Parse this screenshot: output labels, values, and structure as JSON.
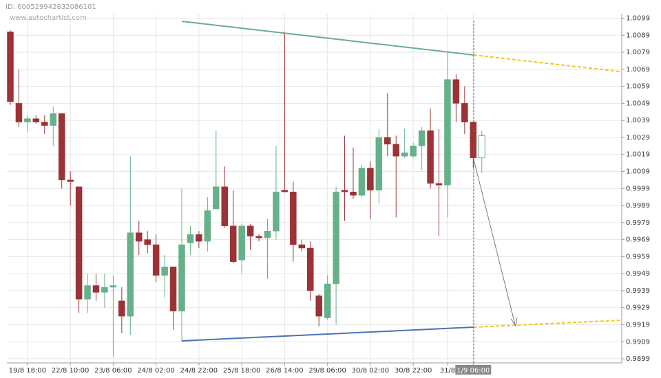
{
  "header": {
    "id": "ID: 600529942832086101",
    "site": "www.autochartist.com"
  },
  "chart_data": {
    "type": "candlestick",
    "categories": [
      null,
      null,
      "19/8 18:00",
      null,
      null,
      null,
      null,
      "22/8 10:00",
      null,
      null,
      null,
      null,
      "23/8 06:00",
      null,
      null,
      null,
      null,
      "24/8 02:00",
      null,
      null,
      null,
      null,
      "24/8 22:00",
      null,
      null,
      null,
      null,
      "25/8 18:00",
      null,
      null,
      null,
      null,
      "26/8 14:00",
      null,
      null,
      null,
      null,
      "29/8 06:00",
      null,
      null,
      null,
      null,
      "30/8 02:00",
      null,
      null,
      null,
      null,
      "30/8 22:00",
      null,
      null,
      null,
      "31/8",
      null,
      null,
      "1/9 06:00",
      null
    ],
    "open": [
      1.0091,
      1.0049,
      1.0038,
      1.004,
      1.0038,
      1.0036,
      1.0043,
      1.0004,
      1.0,
      0.9934,
      0.9942,
      0.9938,
      0.9941,
      0.9933,
      0.9924,
      0.9973,
      0.9969,
      0.9966,
      0.9948,
      0.9953,
      0.9927,
      0.9967,
      0.9972,
      0.9968,
      0.9987,
      1.0,
      0.9977,
      0.9957,
      0.9977,
      0.9971,
      0.997,
      0.9974,
      0.9998,
      0.9997,
      0.9966,
      0.9964,
      0.9936,
      0.9923,
      0.9943,
      0.9998,
      0.9997,
      0.9995,
      1.0011,
      0.9998,
      1.0029,
      1.0025,
      1.0018,
      1.0018,
      1.0024,
      1.0033,
      1.0002,
      1.0001,
      1.0063,
      1.0049,
      1.0038,
      1.0017
    ],
    "high": [
      1.0092,
      1.0069,
      1.0042,
      1.0042,
      1.0042,
      1.0047,
      1.0043,
      1.0009,
      1.0,
      0.9949,
      0.9949,
      0.9949,
      0.9948,
      0.9941,
      1.0018,
      0.998,
      0.9974,
      0.9972,
      0.996,
      0.9953,
      0.9999,
      0.9977,
      0.9974,
      0.9994,
      1.0033,
      1.0012,
      0.9998,
      0.9978,
      0.9978,
      0.9972,
      0.9981,
      1.0024,
      1.0091,
      1.0003,
      0.9969,
      0.9968,
      0.9937,
      0.9948,
      1.0,
      1.003,
      1.0023,
      1.0013,
      1.0015,
      1.0034,
      1.0055,
      1.003,
      1.0034,
      1.0026,
      1.0035,
      1.0046,
      1.0034,
      1.0079,
      1.0066,
      1.0059,
      1.0038,
      1.0033
    ],
    "low": [
      1.0048,
      1.0035,
      1.0032,
      1.0037,
      1.0031,
      1.0024,
      0.9999,
      0.9989,
      0.9926,
      0.9926,
      0.9933,
      0.9929,
      0.99,
      0.9914,
      0.9913,
      0.996,
      0.9961,
      0.9944,
      0.9935,
      0.9916,
      0.9909,
      0.996,
      0.9964,
      0.9962,
      0.9987,
      0.9976,
      0.9955,
      0.9949,
      0.9963,
      0.9968,
      0.9946,
      0.9969,
      0.9997,
      0.9956,
      0.9962,
      0.9933,
      0.9918,
      0.9922,
      0.9919,
      0.998,
      0.9993,
      0.9994,
      0.9981,
      0.999,
      1.0018,
      0.9982,
      1.0017,
      1.0017,
      1.001,
      0.9999,
      0.9971,
      0.9982,
      1.0038,
      1.0031,
      1.0011,
      1.0008
    ],
    "close": [
      1.005,
      1.0038,
      1.004,
      1.0038,
      1.0036,
      1.0043,
      1.0004,
      1.0003,
      0.9934,
      0.9942,
      0.9938,
      0.9941,
      0.9942,
      0.9924,
      0.9973,
      0.9968,
      0.9966,
      0.9948,
      0.9953,
      0.9927,
      0.9966,
      0.9972,
      0.9968,
      0.9986,
      1.0,
      0.9977,
      0.9956,
      0.9977,
      0.9971,
      0.997,
      0.9974,
      0.9997,
      0.9997,
      0.9966,
      0.9964,
      0.9939,
      0.9924,
      0.9943,
      0.9997,
      0.9997,
      0.9995,
      1.0011,
      0.9998,
      1.0029,
      1.0025,
      1.0018,
      1.002,
      1.0024,
      1.0033,
      1.0002,
      1.0001,
      1.0063,
      1.0049,
      1.0038,
      1.0017,
      1.003
    ],
    "up_color": "#66b08a",
    "down_color": "#9b3236",
    "last_hollow": true,
    "ylim": [
      0.9897,
      1.01
    ],
    "yticks": [
      0.9899,
      0.9909,
      0.9919,
      0.9929,
      0.9939,
      0.9949,
      0.9959,
      0.9969,
      0.9979,
      0.9989,
      0.9999,
      1.0009,
      1.0019,
      1.0029,
      1.0039,
      1.0049,
      1.0059,
      1.0069,
      1.0079,
      1.0089,
      1.0099
    ],
    "grid": true
  }
}
